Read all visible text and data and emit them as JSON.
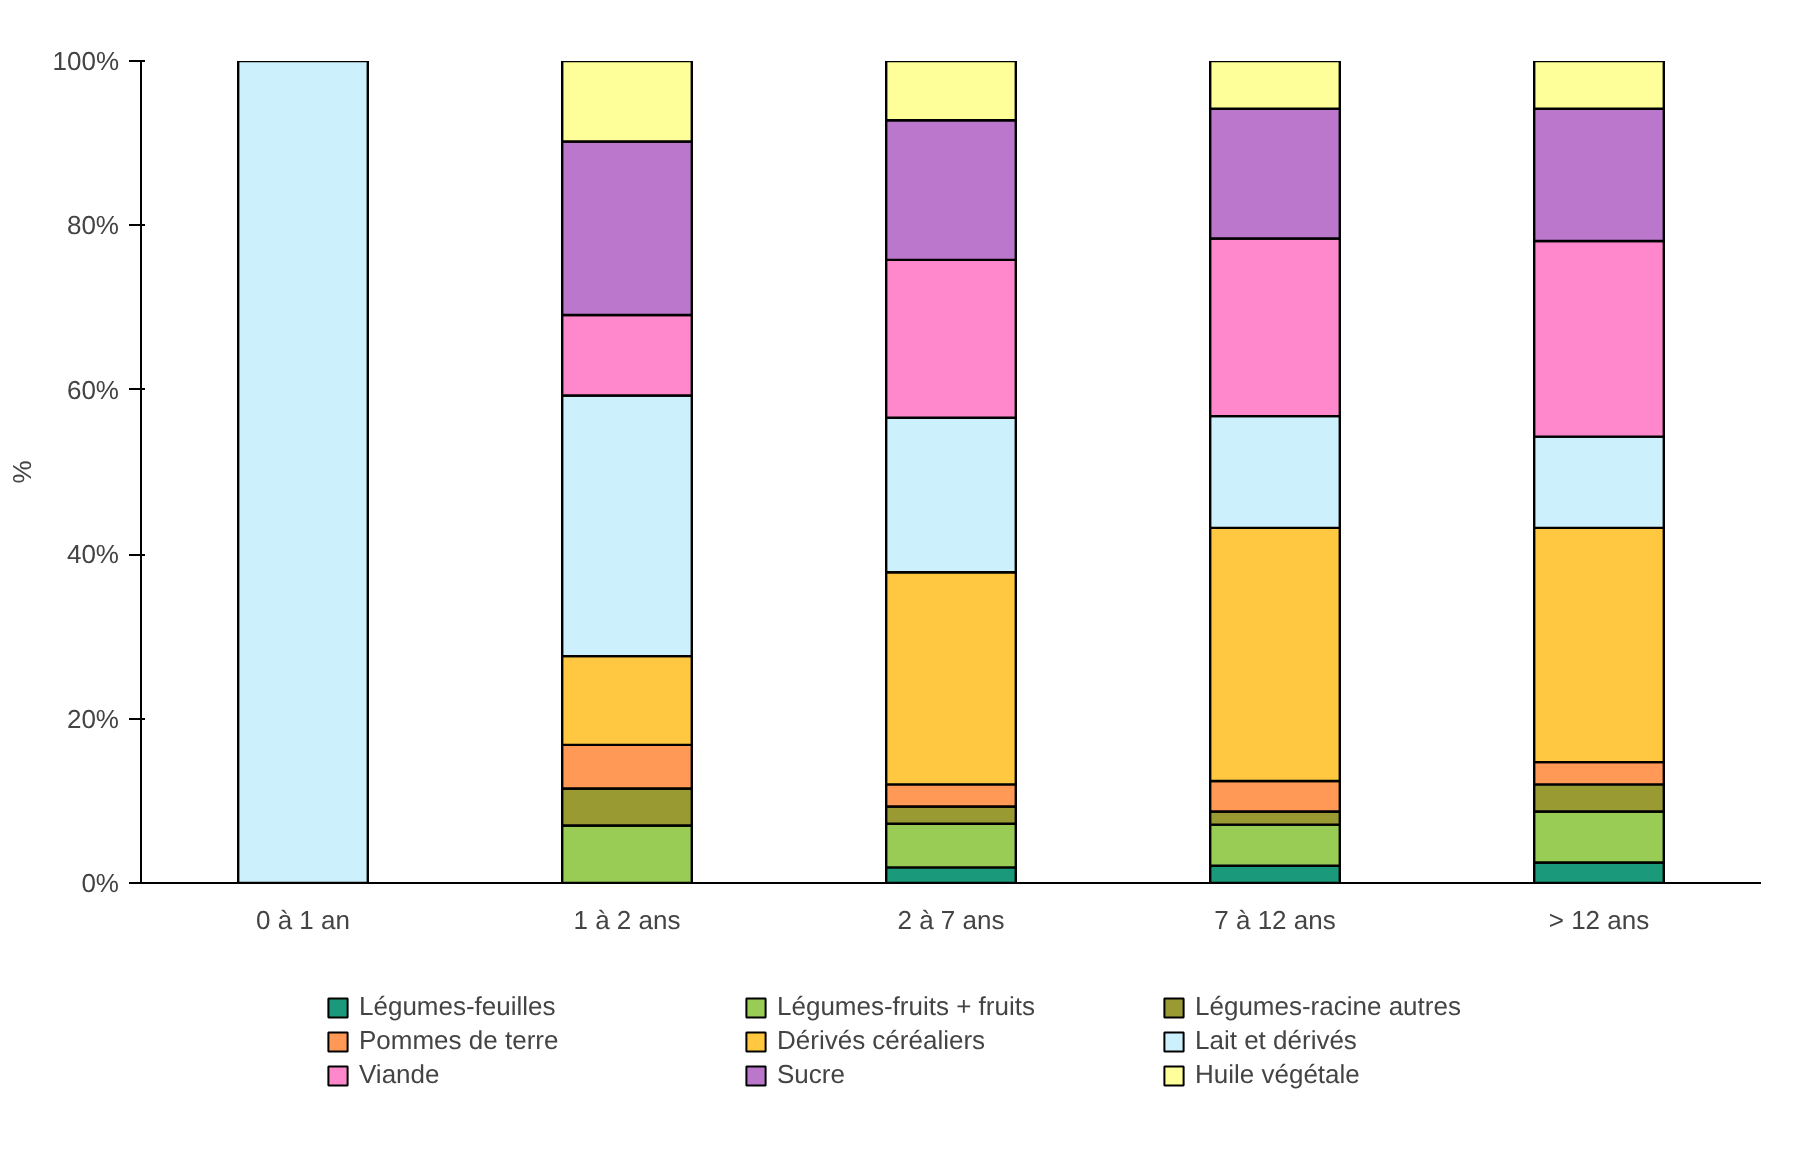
{
  "chart_data": {
    "type": "bar",
    "stacked": true,
    "ylabel": "%",
    "categories": [
      "0 à 1 an",
      "1 à 2 ans",
      "2 à 7 ans",
      "7 à 12 ans",
      "> 12 ans"
    ],
    "ylim": [
      0,
      100
    ],
    "yticks": [
      {
        "value": 0,
        "label": "0%"
      },
      {
        "value": 20,
        "label": "20%"
      },
      {
        "value": 40,
        "label": "40%"
      },
      {
        "value": 60,
        "label": "60%"
      },
      {
        "value": 80,
        "label": "80%"
      },
      {
        "value": 100,
        "label": "100%"
      }
    ],
    "grid": false,
    "legend": "bottom",
    "series": [
      {
        "name": "Légumes-feuilles",
        "color": "#1a9a7a",
        "values": [
          0,
          0,
          1.9,
          2.1,
          2.5
        ]
      },
      {
        "name": "Légumes-fruits + fruits",
        "color": "#99cc55",
        "values": [
          0,
          7.0,
          5.3,
          5.0,
          6.2
        ]
      },
      {
        "name": "Légumes-racine autres",
        "color": "#9a9a33",
        "values": [
          0,
          4.5,
          2.1,
          1.6,
          3.3
        ]
      },
      {
        "name": "Pommes de terre",
        "color": "#ff9955",
        "values": [
          0,
          5.3,
          2.7,
          3.7,
          2.7
        ]
      },
      {
        "name": "Dérivés céréaliers",
        "color": "#ffc840",
        "values": [
          0,
          10.8,
          25.8,
          30.8,
          28.5
        ]
      },
      {
        "name": "Lait et dérivés",
        "color": "#ccf0fc",
        "values": [
          100,
          31.7,
          18.8,
          13.6,
          11.1
        ]
      },
      {
        "name": "Viande",
        "color": "#ff88cc",
        "values": [
          0,
          9.8,
          19.2,
          21.6,
          23.8
        ]
      },
      {
        "name": "Sucre",
        "color": "#bb77cc",
        "values": [
          0,
          21.1,
          17.0,
          15.8,
          16.1
        ]
      },
      {
        "name": "Huile végétale",
        "color": "#ffff99",
        "values": [
          0,
          9.8,
          7.2,
          5.8,
          5.8
        ]
      }
    ]
  }
}
